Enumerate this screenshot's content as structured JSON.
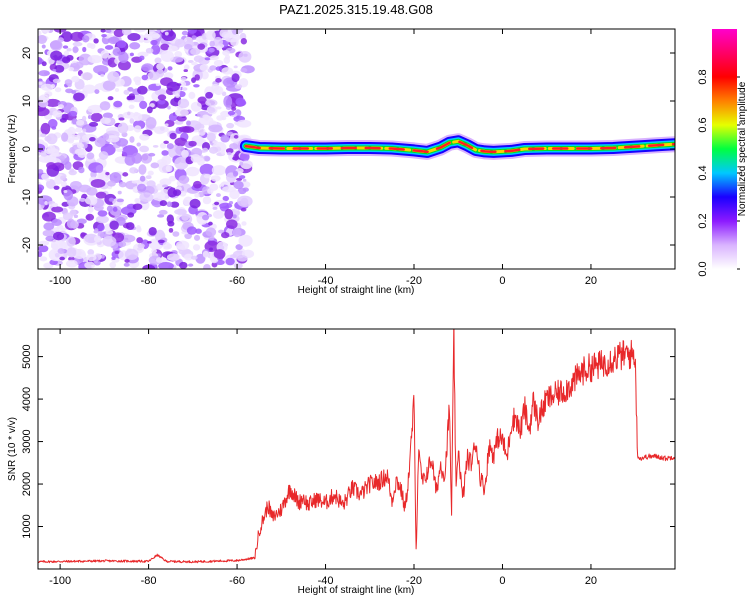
{
  "figure_title": "PAZ1.2025.315.19.48.G08",
  "colors": {
    "trace": "#e8282a",
    "ridge_outer": "#1500ff",
    "ridge_mid": "#00e020",
    "ridge_core": "#ff2020",
    "noise": "#8a2be2"
  },
  "chart_data": [
    {
      "type": "heatmap",
      "title": "PAZ1.2025.315.19.48.G08",
      "xlabel": "Height of straight line (km)",
      "ylabel": "Frequency (Hz)",
      "xlim": [
        -105,
        39
      ],
      "ylim": [
        -25,
        25
      ],
      "xticks": [
        -100,
        -80,
        -60,
        -40,
        -20,
        0,
        20
      ],
      "yticks": [
        -20,
        -10,
        0,
        10,
        20
      ],
      "noise_region_x": [
        -105,
        -57.5
      ],
      "ridge_start_x": -58,
      "ridge_x": [
        -58,
        -55,
        -50,
        -45,
        -40,
        -35,
        -30,
        -25,
        -20,
        -17,
        -14,
        -12,
        -10,
        -8,
        -6,
        -4,
        -2,
        0,
        2,
        5,
        10,
        15,
        20,
        25,
        30,
        35,
        39
      ],
      "ridge_freq": [
        0.6,
        0.2,
        0.1,
        0.1,
        0.1,
        0.2,
        0.2,
        0.1,
        -0.3,
        -0.6,
        0.3,
        1.3,
        1.6,
        0.8,
        -0.2,
        -0.5,
        -0.6,
        -0.5,
        -0.4,
        0.0,
        0.1,
        0.1,
        0.1,
        0.2,
        0.5,
        0.8,
        1.0
      ],
      "colorbar": {
        "label": "Normalized spectral amplitude",
        "range": [
          0,
          1
        ],
        "ticks": [
          0.0,
          0.2,
          0.4,
          0.6,
          0.8
        ],
        "tick_labels": [
          "0.0",
          "0.2",
          "0.4",
          "0.6",
          "0.8"
        ],
        "colors": [
          "#ffffff",
          "#d9b3ff",
          "#8c1aff",
          "#1a00ff",
          "#00c8ff",
          "#00ff40",
          "#e6ff00",
          "#ff8000",
          "#ff0000",
          "#ff0066",
          "#ff00cc"
        ]
      }
    },
    {
      "type": "line",
      "xlabel": "Height of straight line (km)",
      "ylabel": "SNR (10 * v/v)",
      "xlim": [
        -105,
        39
      ],
      "ylim": [
        0,
        5650
      ],
      "xticks": [
        -100,
        -80,
        -60,
        -40,
        -20,
        0,
        20
      ],
      "yticks": [
        1000,
        2000,
        3000,
        4000,
        5000
      ],
      "series": [
        {
          "name": "SNR",
          "x": [
            -105,
            -90,
            -80,
            -78,
            -76,
            -70,
            -60,
            -56,
            -55,
            -53,
            -52,
            -50,
            -48,
            -46,
            -45,
            -44,
            -42,
            -40,
            -38,
            -36,
            -34,
            -32,
            -30,
            -28,
            -26,
            -25,
            -24,
            -23,
            -22,
            -21,
            -20,
            -19.5,
            -19,
            -18,
            -17,
            -16,
            -15,
            -14,
            -13,
            -12,
            -11.5,
            -11,
            -10.5,
            -10,
            -9,
            -8,
            -7,
            -6,
            -5,
            -4,
            -3,
            -2,
            -1,
            0,
            1,
            2,
            3,
            4,
            5,
            6,
            7,
            8,
            10,
            12,
            14,
            16,
            18,
            20,
            22,
            24,
            26,
            28,
            30,
            30.5,
            31,
            33,
            35,
            37,
            39
          ],
          "y": [
            170,
            190,
            180,
            330,
            180,
            170,
            200,
            260,
            900,
            1500,
            1200,
            1400,
            1900,
            1550,
            1700,
            1500,
            1650,
            1550,
            1750,
            1500,
            1900,
            1750,
            2000,
            2050,
            2200,
            1600,
            2100,
            1900,
            1400,
            2400,
            3950,
            400,
            2700,
            2000,
            2300,
            2600,
            1800,
            2450,
            2200,
            3800,
            1200,
            5650,
            1700,
            2900,
            1600,
            2600,
            2500,
            3000,
            2150,
            1900,
            2900,
            2700,
            3100,
            3050,
            2600,
            3450,
            3600,
            3200,
            3800,
            3250,
            3950,
            3500,
            4000,
            4100,
            4200,
            4400,
            4650,
            4750,
            4800,
            4900,
            5000,
            5050,
            5050,
            2700,
            2600,
            2650,
            2650,
            2600,
            2650
          ]
        }
      ]
    }
  ]
}
